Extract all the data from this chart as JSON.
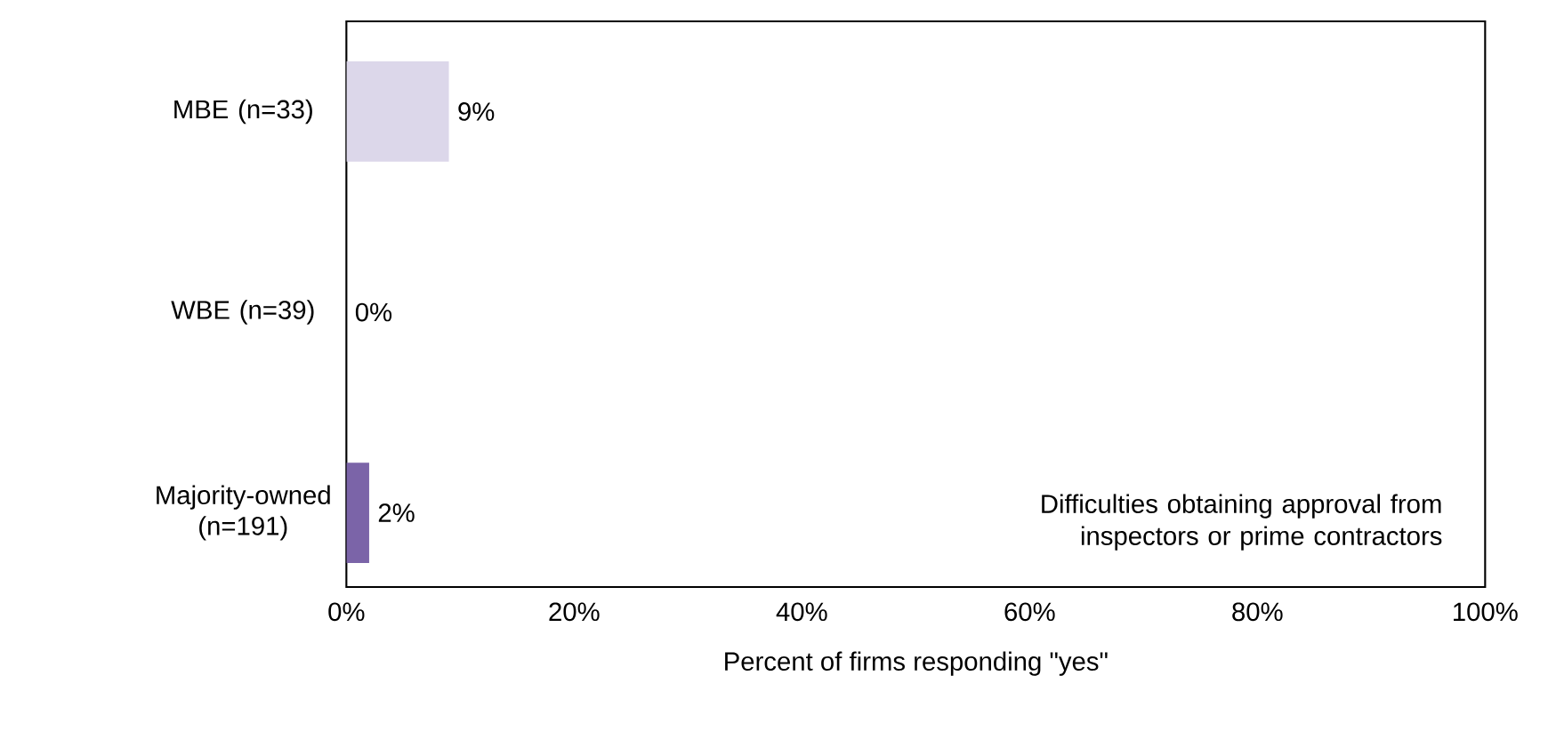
{
  "chart_data": {
    "type": "bar",
    "orientation": "horizontal",
    "categories": [
      "MBE (n=33)",
      "WBE (n=39)",
      "Majority-owned (n=191)"
    ],
    "values": [
      9,
      0,
      2
    ],
    "colors": [
      "#dcd7ea",
      "#b7aed3",
      "#7b64a8"
    ],
    "value_labels": [
      "9%",
      "0%",
      "2%"
    ],
    "xlim": [
      0,
      100
    ],
    "xticks": [
      {
        "value": 0,
        "label": "0%"
      },
      {
        "value": 20,
        "label": "20%"
      },
      {
        "value": 40,
        "label": "40%"
      },
      {
        "value": 60,
        "label": "60%"
      },
      {
        "value": 80,
        "label": "80%"
      },
      {
        "value": 100,
        "label": "100%"
      }
    ],
    "xlabel": "Percent of firms responding \"yes\"",
    "annotations": [
      "Difficulties obtaining approval from inspectors or prime contractors"
    ],
    "grid": false
  }
}
